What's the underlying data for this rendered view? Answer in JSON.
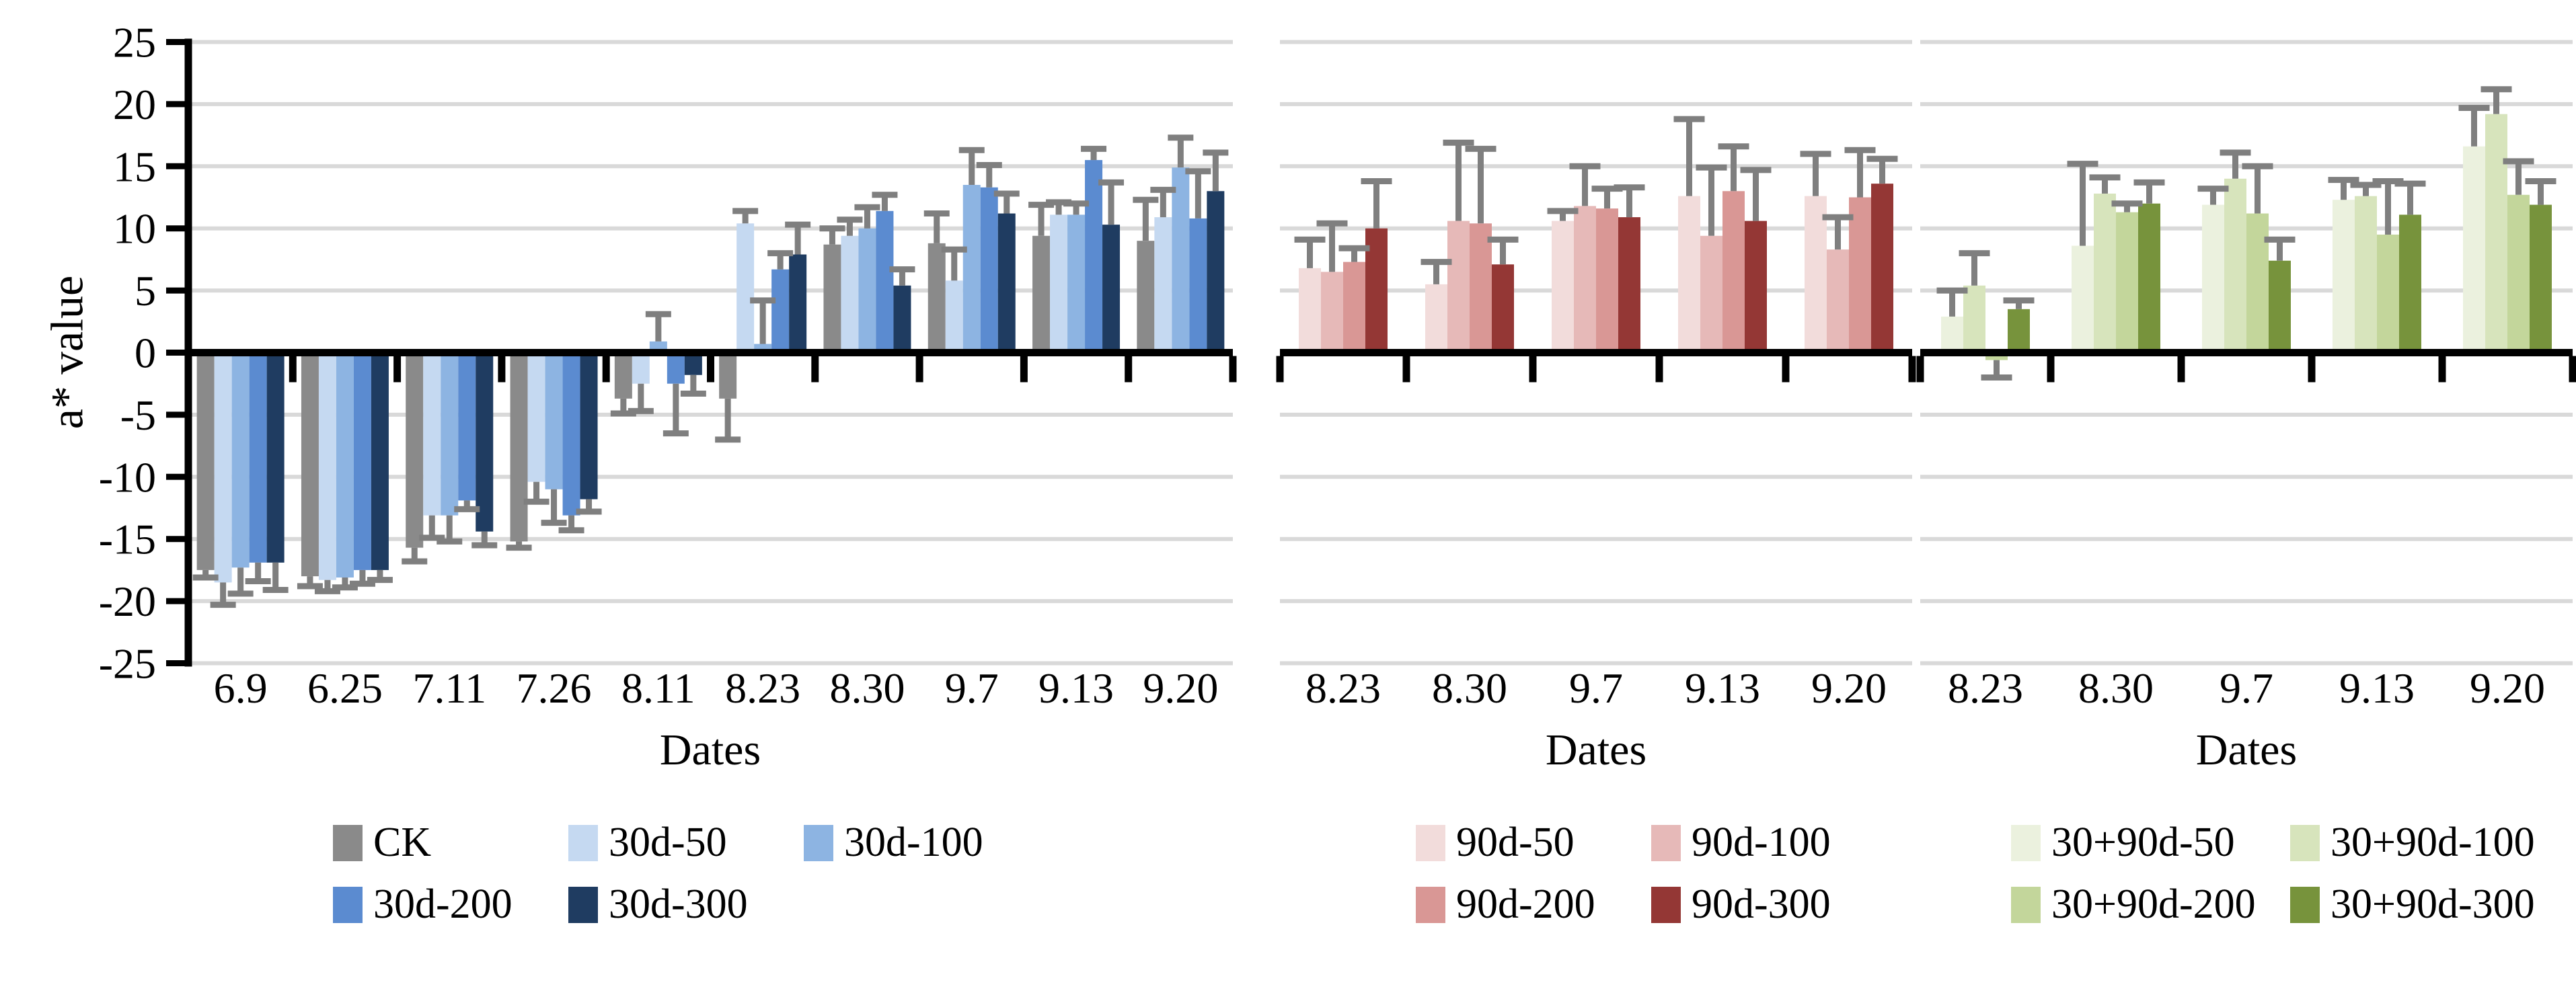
{
  "colors": {
    "grid": "#D9D9D9",
    "axis": "#000000",
    "error_bar": "#7F7F7F",
    "text": "#000000",
    "background": "#FFFFFF"
  },
  "chart_data": [
    {
      "type": "bar",
      "panel": "30d-treatments",
      "xlabel": "Dates",
      "ylabel": "a* value",
      "ylim": [
        -25,
        25
      ],
      "ytick_step": 5,
      "grid": true,
      "legend_position": "below",
      "y_tick_labels": [
        "25",
        "20",
        "15",
        "10",
        "5",
        "0",
        "-5",
        "-10",
        "-15",
        "-20",
        "-25"
      ],
      "categories": [
        "6.9",
        "6.25",
        "7.11",
        "7.26",
        "8.11",
        "8.23",
        "8.30",
        "9.7",
        "9.13",
        "9.20"
      ],
      "series": [
        {
          "name": "CK",
          "color": "#8A8A8A",
          "values": [
            -17.5,
            -18.0,
            -15.7,
            -15.2,
            -3.7,
            -3.7,
            8.7,
            8.8,
            9.4,
            9.0
          ],
          "errors": [
            0.6,
            0.8,
            1.1,
            0.5,
            1.2,
            3.3,
            1.3,
            2.4,
            2.5,
            3.3
          ]
        },
        {
          "name": "30d-50",
          "color": "#C5D9F1",
          "values": [
            -18.5,
            -18.3,
            -13.1,
            -10.4,
            -2.5,
            10.4,
            9.4,
            5.8,
            11.1,
            10.9
          ],
          "errors": [
            1.8,
            0.9,
            1.8,
            1.6,
            2.2,
            1.0,
            1.3,
            2.5,
            1.0,
            2.2
          ]
        },
        {
          "name": "30d-100",
          "color": "#8DB4E2",
          "values": [
            -17.3,
            -18.1,
            -13.1,
            -11.0,
            0.9,
            0.7,
            10.0,
            13.5,
            11.1,
            14.9
          ],
          "errors": [
            2.1,
            0.8,
            2.1,
            2.7,
            2.2,
            3.5,
            1.7,
            2.8,
            0.9,
            2.4
          ]
        },
        {
          "name": "30d-200",
          "color": "#5B8BD0",
          "values": [
            -16.9,
            -17.5,
            -11.9,
            -13.1,
            -2.5,
            6.7,
            11.4,
            13.3,
            15.5,
            10.8
          ],
          "errors": [
            1.5,
            1.1,
            0.7,
            1.2,
            4.0,
            1.3,
            1.3,
            1.8,
            0.9,
            3.8
          ]
        },
        {
          "name": "30d-300",
          "color": "#1F3C61",
          "values": [
            -16.9,
            -17.5,
            -14.4,
            -11.8,
            -1.8,
            7.9,
            5.4,
            11.2,
            10.3,
            13.0
          ],
          "errors": [
            2.2,
            0.8,
            1.1,
            1.0,
            1.5,
            2.4,
            1.3,
            1.6,
            3.4,
            3.1
          ]
        }
      ]
    },
    {
      "type": "bar",
      "panel": "90d-treatments",
      "xlabel": "Dates",
      "ylabel": "",
      "ylim": [
        -25,
        25
      ],
      "ytick_step": 5,
      "grid": true,
      "legend_position": "below",
      "categories": [
        "8.23",
        "8.30",
        "9.7",
        "9.13",
        "9.20"
      ],
      "series": [
        {
          "name": "90d-50",
          "color": "#F2DCDB",
          "values": [
            6.8,
            5.5,
            10.6,
            12.6,
            12.6
          ],
          "errors": [
            2.3,
            1.8,
            0.8,
            6.2,
            3.4
          ]
        },
        {
          "name": "90d-100",
          "color": "#E6B9B8",
          "values": [
            6.5,
            10.6,
            11.8,
            9.4,
            8.3
          ],
          "errors": [
            3.9,
            6.3,
            3.2,
            5.5,
            2.6
          ]
        },
        {
          "name": "90d-200",
          "color": "#D99795",
          "values": [
            7.3,
            10.4,
            11.6,
            13.0,
            12.5
          ],
          "errors": [
            1.1,
            6.0,
            1.6,
            3.6,
            3.8
          ]
        },
        {
          "name": "90d-300",
          "color": "#943735",
          "values": [
            10.0,
            7.1,
            10.9,
            10.6,
            13.6
          ],
          "errors": [
            3.8,
            2.0,
            2.4,
            4.1,
            2.0
          ]
        }
      ]
    },
    {
      "type": "bar",
      "panel": "30+90d-treatments",
      "xlabel": "Dates",
      "ylabel": "",
      "ylim": [
        -25,
        25
      ],
      "ytick_step": 5,
      "grid": true,
      "legend_position": "below",
      "categories": [
        "8.23",
        "8.30",
        "9.7",
        "9.13",
        "9.20"
      ],
      "series": [
        {
          "name": "30+90d-50",
          "color": "#EBF1DE",
          "values": [
            2.9,
            8.6,
            11.9,
            12.3,
            16.6
          ],
          "errors": [
            2.1,
            6.6,
            1.3,
            1.6,
            3.1
          ]
        },
        {
          "name": "30+90d-100",
          "color": "#D7E4BC",
          "values": [
            5.4,
            12.8,
            14.0,
            12.6,
            19.2
          ],
          "errors": [
            2.6,
            1.3,
            2.1,
            0.9,
            2.0
          ]
        },
        {
          "name": "30+90d-200",
          "color": "#C3D69B",
          "values": [
            -0.6,
            11.3,
            11.2,
            9.5,
            12.7
          ],
          "errors": [
            1.4,
            0.7,
            3.8,
            4.3,
            2.7
          ]
        },
        {
          "name": "30+90d-300",
          "color": "#77933C",
          "values": [
            3.5,
            12.0,
            7.4,
            11.1,
            11.9
          ],
          "errors": [
            0.7,
            1.7,
            1.7,
            2.5,
            1.9
          ]
        }
      ]
    }
  ],
  "legends": [
    {
      "panel": 1,
      "items": [
        "CK",
        "30d-50",
        "30d-100",
        "30d-200",
        "30d-300"
      ]
    },
    {
      "panel": 2,
      "items": [
        "90d-50",
        "90d-100",
        "90d-200",
        "90d-300"
      ]
    },
    {
      "panel": 3,
      "items": [
        "30+90d-50",
        "30+90d-100",
        "30+90d-200",
        "30+90d-300"
      ]
    }
  ]
}
